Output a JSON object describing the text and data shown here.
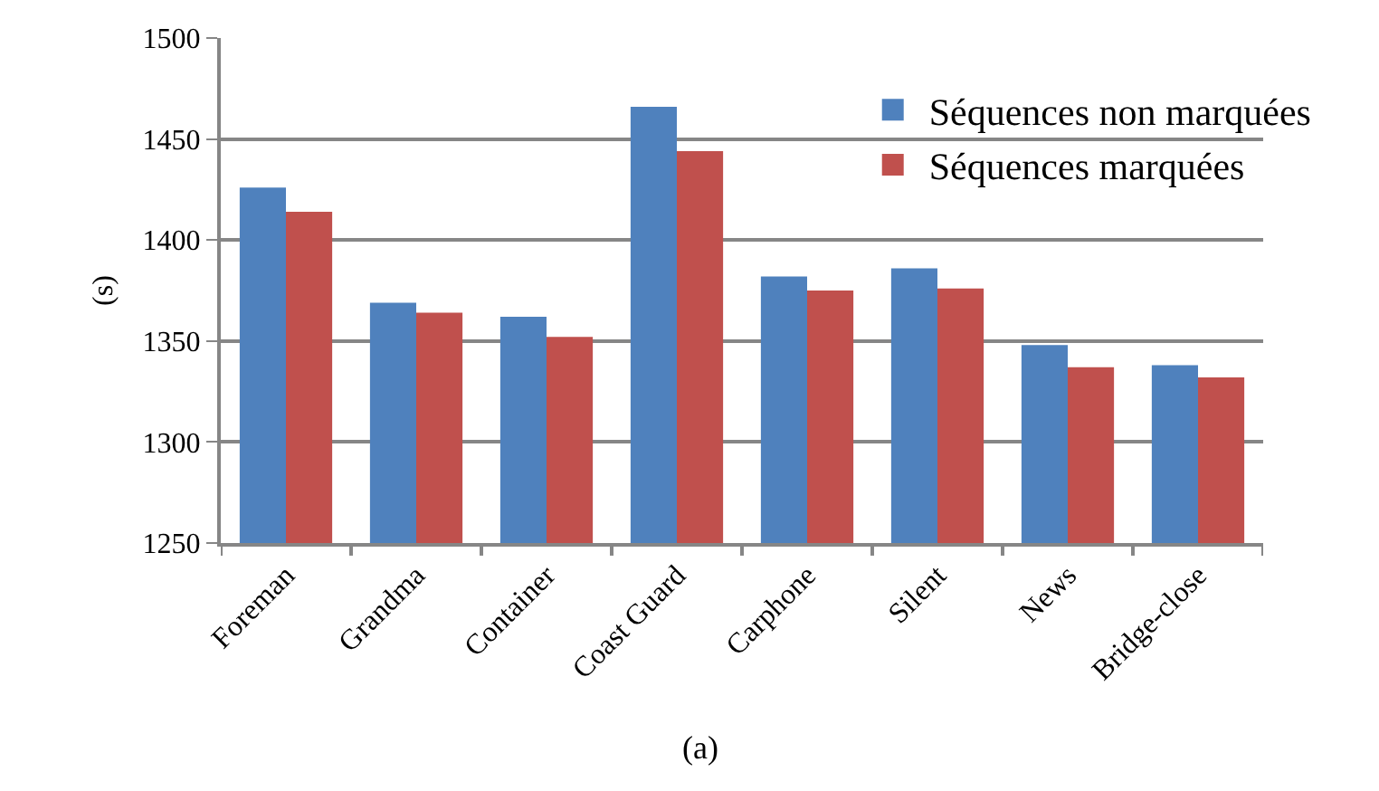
{
  "chart_data": {
    "type": "bar",
    "ylabel": "(s)",
    "annotations": [
      "(a)"
    ],
    "categories": [
      "Foreman",
      "Grandma",
      "Container",
      "Coast Guard",
      "Carphone",
      "Silent",
      "News",
      "Bridge-close"
    ],
    "series": [
      {
        "name": "Séquences non marquées",
        "color": "#4f81bd",
        "values": [
          1426,
          1369,
          1362,
          1466,
          1382,
          1386,
          1348,
          1338
        ]
      },
      {
        "name": "Séquences marquées",
        "color": "#c0504d",
        "values": [
          1414,
          1364,
          1352,
          1444,
          1375,
          1376,
          1337,
          1332
        ]
      }
    ],
    "ylim": [
      1250,
      1500
    ],
    "yticks": [
      1250,
      1300,
      1350,
      1400,
      1450,
      1500
    ],
    "grid": "y",
    "legend": "top right"
  }
}
